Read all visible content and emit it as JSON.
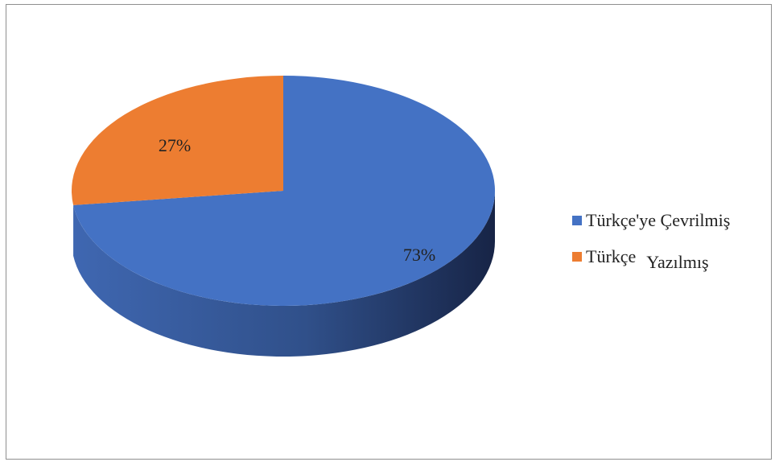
{
  "chart_data": {
    "type": "pie",
    "style": "3d",
    "slices": [
      {
        "name": "Türkçe'ye Çevrilmiş",
        "value": 73,
        "label": "73%",
        "color": "#4472C4",
        "side_color_light": "#3F67B1",
        "side_color_dark": "#172446"
      },
      {
        "name": "Türkçe Yazılmış",
        "value": 27,
        "label": "27%",
        "color": "#ED7D31",
        "side_color_light": "#D36D2A",
        "side_color_dark": "#9A4D18"
      }
    ],
    "legend": {
      "placement": "right",
      "items": [
        {
          "text": "Türkçe'ye Çevrilmiş",
          "color": "#4472C4"
        },
        {
          "parts": [
            "Türkçe",
            "Yazılmış"
          ],
          "color": "#ED7D31"
        }
      ]
    },
    "frame_border_color": "#8F8F8F",
    "background": "#FFFFFF"
  }
}
